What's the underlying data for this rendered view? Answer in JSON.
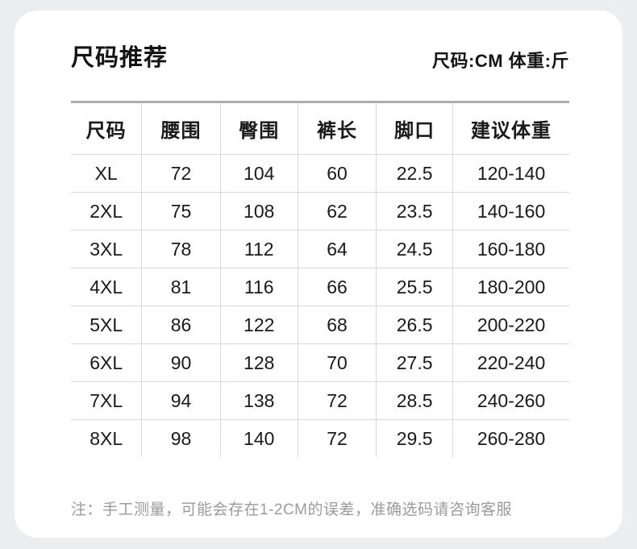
{
  "card": {
    "title": "尺码推荐",
    "units_label": "尺码:CM 体重:斤",
    "note": "注：手工测量，可能会存在1-2CM的误差，准确选码请咨询客服"
  },
  "table": {
    "columns": [
      "尺码",
      "腰围",
      "臀围",
      "裤长",
      "脚口",
      "建议体重"
    ],
    "rows": [
      [
        "XL",
        "72",
        "104",
        "60",
        "22.5",
        "120-140"
      ],
      [
        "2XL",
        "75",
        "108",
        "62",
        "23.5",
        "140-160"
      ],
      [
        "3XL",
        "78",
        "112",
        "64",
        "24.5",
        "160-180"
      ],
      [
        "4XL",
        "81",
        "116",
        "66",
        "25.5",
        "180-200"
      ],
      [
        "5XL",
        "86",
        "122",
        "68",
        "26.5",
        "200-220"
      ],
      [
        "6XL",
        "90",
        "128",
        "70",
        "27.5",
        "220-240"
      ],
      [
        "7XL",
        "94",
        "138",
        "72",
        "28.5",
        "240-260"
      ],
      [
        "8XL",
        "98",
        "140",
        "72",
        "29.5",
        "260-280"
      ]
    ]
  },
  "colors": {
    "page_background": "#ecedef",
    "card_background": "#ffffff",
    "text_primary": "#1a1a1a",
    "table_top_border": "#adadad",
    "grid_line": "#d9d9d9",
    "note_text": "#9b9b9b"
  }
}
